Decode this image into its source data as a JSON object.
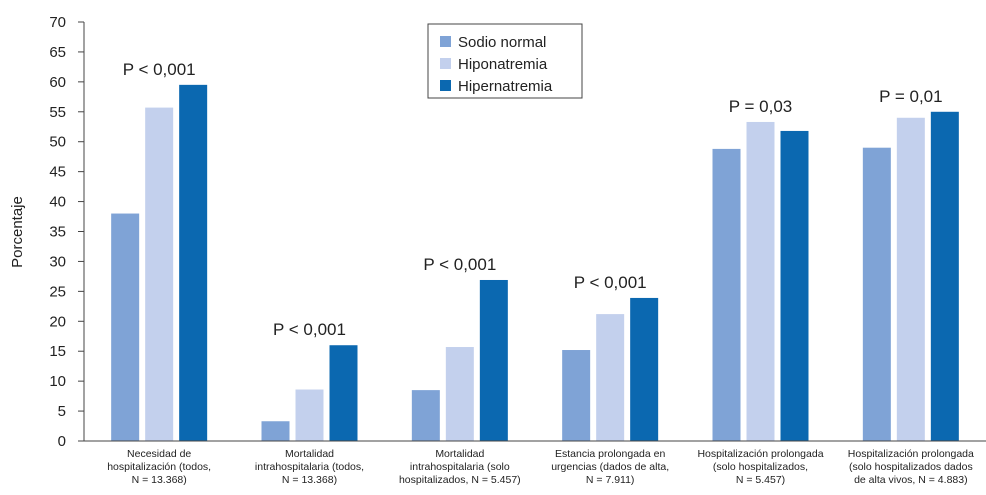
{
  "chart_data": {
    "type": "bar",
    "ylabel": "Porcentaje",
    "ylim": [
      0,
      70
    ],
    "yticks": [
      "0",
      "5",
      "10",
      "15",
      "20",
      "25",
      "30",
      "35",
      "40",
      "45",
      "50",
      "55",
      "60",
      "65",
      "70"
    ],
    "grid": false,
    "legend_position": "top-center",
    "categories": [
      [
        "Necesidad de",
        "hospitalización (todos,",
        "N = 13.368)"
      ],
      [
        "Mortalidad",
        "intrahospitalaria (todos,",
        "N = 13.368)"
      ],
      [
        "Mortalidad",
        "intrahospitalaria (solo",
        "hospitalizados, N = 5.457)"
      ],
      [
        "Estancia prolongada en",
        "urgencias (dados de alta,",
        "N = 7.911)"
      ],
      [
        "Hospitalización prolongada",
        "(solo hospitalizados,",
        "N = 5.457)"
      ],
      [
        "Hospitalización prolongada",
        "(solo hospitalizados dados",
        "de alta vivos, N = 4.883)"
      ]
    ],
    "series": [
      {
        "name": "Sodio normal",
        "color": "#7fa3d6",
        "values": [
          38,
          3.3,
          8.5,
          15.2,
          48.8,
          49
        ]
      },
      {
        "name": "Hiponatremia",
        "color": "#c3d0ed",
        "values": [
          55.7,
          8.6,
          15.7,
          21.2,
          53.3,
          54
        ]
      },
      {
        "name": "Hipernatremia",
        "color": "#0b68b0",
        "values": [
          59.5,
          16,
          26.9,
          23.9,
          51.8,
          55
        ]
      }
    ],
    "annotations": [
      "P < 0,001",
      "P < 0,001",
      "P < 0,001",
      "P < 0,001",
      "P = 0,03",
      "P = 0,01"
    ]
  }
}
